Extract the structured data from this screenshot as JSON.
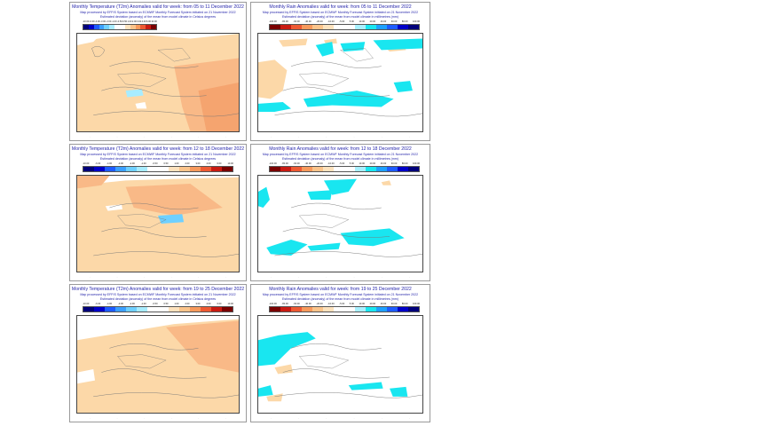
{
  "colors": {
    "title_text": "#1f1fa8",
    "temp_anomaly_warm": "#fcd8a8",
    "temp_anomaly_warmer": "#f9b987",
    "rain_anomaly_wet": "#19e6f0",
    "rain_anomaly_dry": "#fcd8a8"
  },
  "temp_scale_colors": [
    "#00007a",
    "#0000c8",
    "#1e5cff",
    "#3ca0ff",
    "#6fd0ff",
    "#a8ecff",
    "#ffffff",
    "#ffffff",
    "#fde2bd",
    "#fbc48b",
    "#f79a5c",
    "#ee5a33",
    "#c91b12",
    "#7a0000"
  ],
  "rain_scale_colors": [
    "#7a0000",
    "#c91b12",
    "#ee5a33",
    "#f79a5c",
    "#fbc48b",
    "#fde2bd",
    "#ffffff",
    "#ffffff",
    "#a8f0ff",
    "#19e6f0",
    "#1ea0ff",
    "#1e5cff",
    "#0000c8",
    "#00007a"
  ],
  "panels": [
    {
      "variable": "temperature",
      "title": "Monthly Temperature (T2m) Anomalies valid for week: from 05 to 11 December 2022",
      "subtitle": "Map processed by EFFIS System based on ECMWF Monthly Forecast System initiated on 21 November 2022",
      "note": "Estimated deviation (anomaly) of the mean from model climate in Celsius degrees",
      "legend_ticks": [
        "-10.00",
        "-6.00",
        "-4.00",
        "-3.00",
        "-2.00",
        "-1.00",
        "-0.50",
        "0.50",
        "1.00",
        "2.00",
        "3.00",
        "4.00",
        "6.00",
        "10.00"
      ]
    },
    {
      "variable": "rain",
      "title": "Monthly Rain Anomalies valid for week: from 05 to 11 December 2022",
      "subtitle": "Map processed by EFFIS System based on ECMWF Monthly Forecast System initiated on 21 November 2022",
      "note": "Estimated deviation (anomaly) of the mean from model climate in millimetres (mm)",
      "legend_ticks": [
        "-100.00",
        "-80.00",
        "-60.00",
        "-40.00",
        "-20.00",
        "-10.00",
        "-5.00",
        "5.00",
        "10.00",
        "20.00",
        "40.00",
        "60.00",
        "80.00",
        "100.00"
      ]
    },
    {
      "variable": "temperature",
      "title": "Monthly Temperature (T2m) Anomalies valid for week: from 12 to 18 December 2022",
      "subtitle": "Map processed by EFFIS System based on ECMWF Monthly Forecast System initiated on 21 November 2022",
      "note": "Estimated deviation (anomaly) of the mean from model climate in Celsius degrees",
      "legend_ticks": [
        "-10.00",
        "-6.00",
        "-4.00",
        "-3.00",
        "-2.00",
        "-1.00",
        "-0.50",
        "0.50",
        "1.00",
        "2.00",
        "3.00",
        "4.00",
        "6.00",
        "10.00"
      ]
    },
    {
      "variable": "rain",
      "title": "Monthly Rain Anomalies valid for week: from 12 to 18 December 2022",
      "subtitle": "Map processed by EFFIS System based on ECMWF Monthly Forecast System initiated on 21 November 2022",
      "note": "Estimated deviation (anomaly) of the mean from model climate in millimetres (mm)",
      "legend_ticks": [
        "-100.00",
        "-80.00",
        "-60.00",
        "-40.00",
        "-20.00",
        "-10.00",
        "-5.00",
        "5.00",
        "10.00",
        "20.00",
        "40.00",
        "60.00",
        "80.00",
        "100.00"
      ]
    },
    {
      "variable": "temperature",
      "title": "Monthly Temperature (T2m) Anomalies valid for week: from 19 to 25 December 2022",
      "subtitle": "Map processed by EFFIS System based on ECMWF Monthly Forecast System initiated on 21 November 2022",
      "note": "Estimated deviation (anomaly) of the mean from model climate in Celsius degrees",
      "legend_ticks": [
        "-10.00",
        "-6.00",
        "-4.00",
        "-3.00",
        "-2.00",
        "-1.00",
        "-0.50",
        "0.50",
        "1.00",
        "2.00",
        "3.00",
        "4.00",
        "6.00",
        "10.00"
      ]
    },
    {
      "variable": "rain",
      "title": "Monthly Rain Anomalies valid for week: from 19 to 25 December 2022",
      "subtitle": "Map processed by EFFIS System based on ECMWF Monthly Forecast System initiated on 21 November 2022",
      "note": "Estimated deviation (anomaly) of the mean from model climate in millimetres (mm)",
      "legend_ticks": [
        "-100.00",
        "-80.00",
        "-60.00",
        "-40.00",
        "-20.00",
        "-10.00",
        "-5.00",
        "5.00",
        "10.00",
        "20.00",
        "40.00",
        "60.00",
        "80.00",
        "100.00"
      ]
    }
  ]
}
